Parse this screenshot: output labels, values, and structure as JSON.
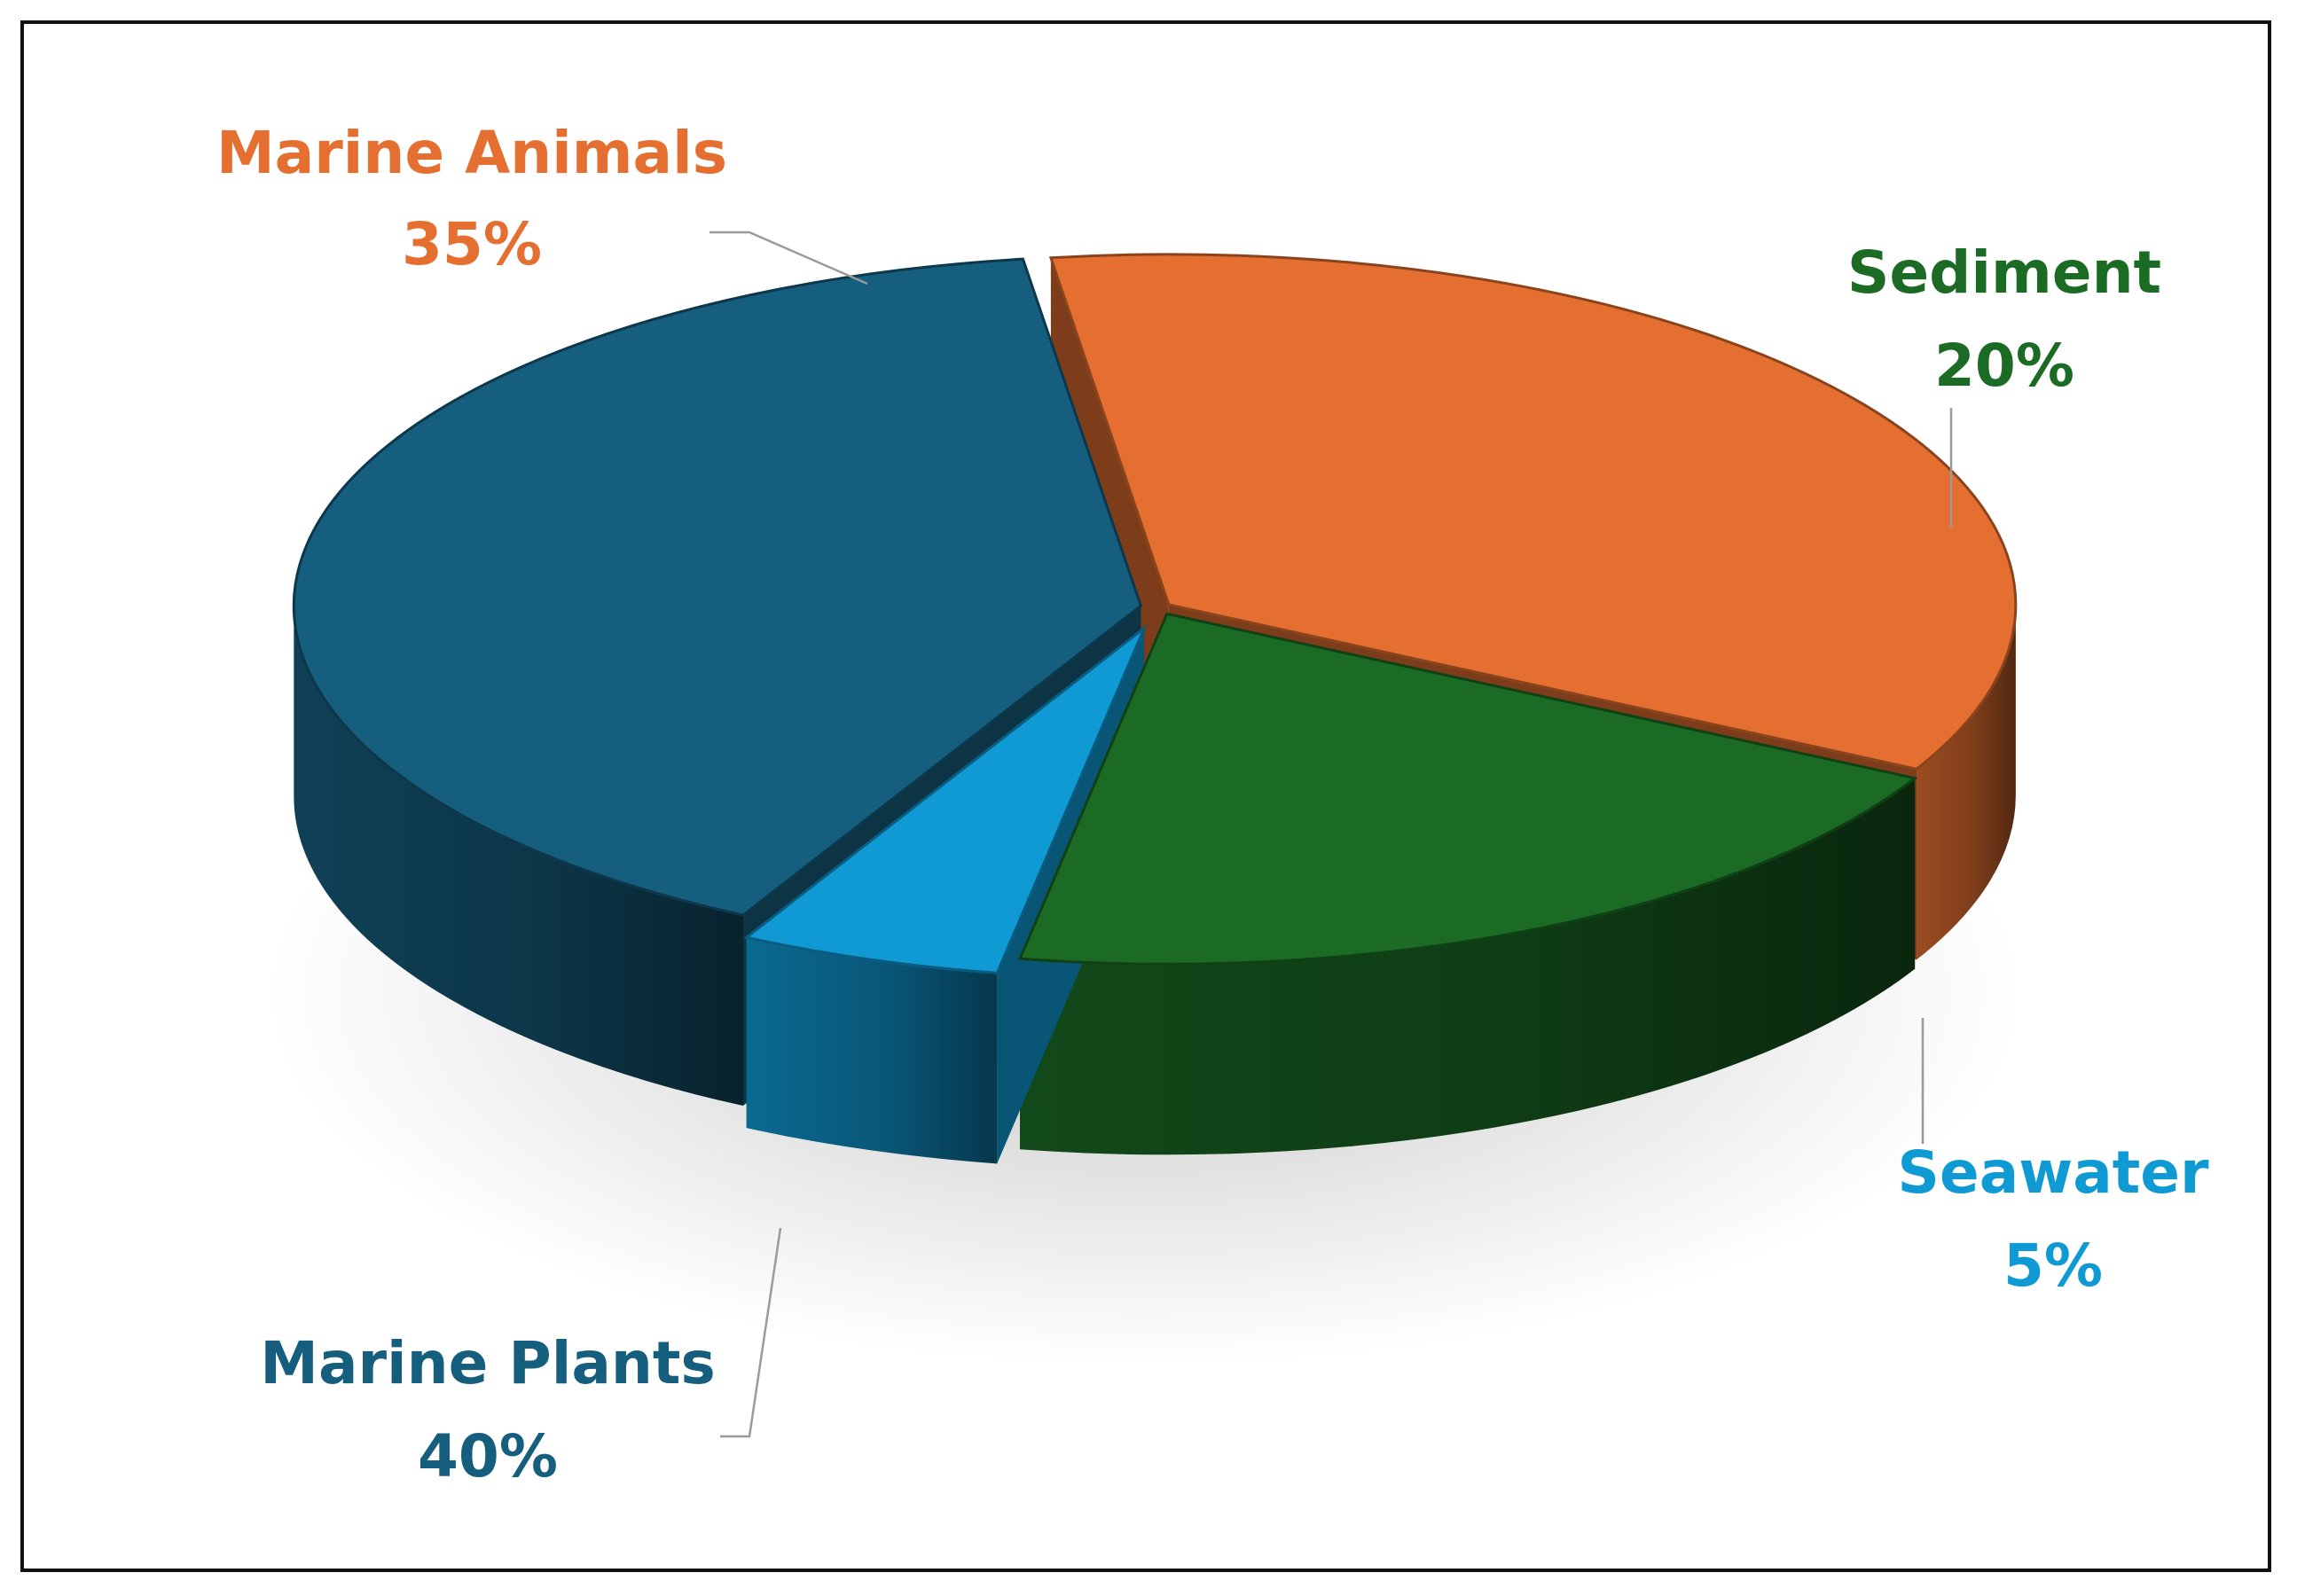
{
  "chart_data": {
    "type": "pie",
    "variant": "3d",
    "title": "",
    "legend": "none",
    "slices": [
      {
        "label": "Marine Animals",
        "value": 35,
        "value_label": "35%",
        "color": "#E46F30"
      },
      {
        "label": "Sediment",
        "value": 20,
        "value_label": "20%",
        "color": "#1B6B25"
      },
      {
        "label": "Seawater",
        "value": 5,
        "value_label": "5%",
        "color": "#0F9AD4"
      },
      {
        "label": "Marine Plants",
        "value": 40,
        "value_label": "40%",
        "color": "#165E7E"
      }
    ]
  }
}
